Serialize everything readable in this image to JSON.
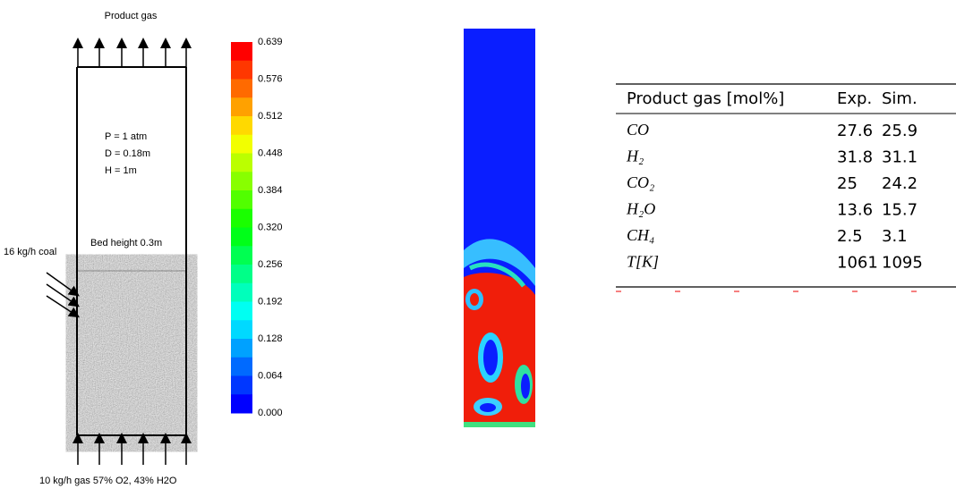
{
  "diagram": {
    "top_label": "Product gas",
    "params": [
      "P = 1 atm",
      "D = 0.18m",
      "H = 1m"
    ],
    "bed_label": "Bed height 0.3m",
    "coal_label": "16 kg/h coal",
    "gas_label": "10 kg/h gas 57% O2, 43% H2O"
  },
  "colorbar": {
    "labels": [
      "0.639",
      "0.576",
      "0.512",
      "0.448",
      "0.384",
      "0.320",
      "0.256",
      "0.192",
      "0.128",
      "0.064",
      "0.000"
    ]
  },
  "table": {
    "header": [
      "Product gas [mol%]",
      "Exp.",
      "Sim."
    ],
    "rows": [
      [
        "CO",
        "27.6",
        "25.9"
      ],
      [
        "H₂",
        "31.8",
        "31.1"
      ],
      [
        "CO₂",
        "25",
        "24.2"
      ],
      [
        "H₂O",
        "13.6",
        "15.7"
      ],
      [
        "CH₄",
        "2.5",
        "3.1"
      ],
      [
        "T[K]",
        "1061",
        "1095"
      ]
    ]
  }
}
